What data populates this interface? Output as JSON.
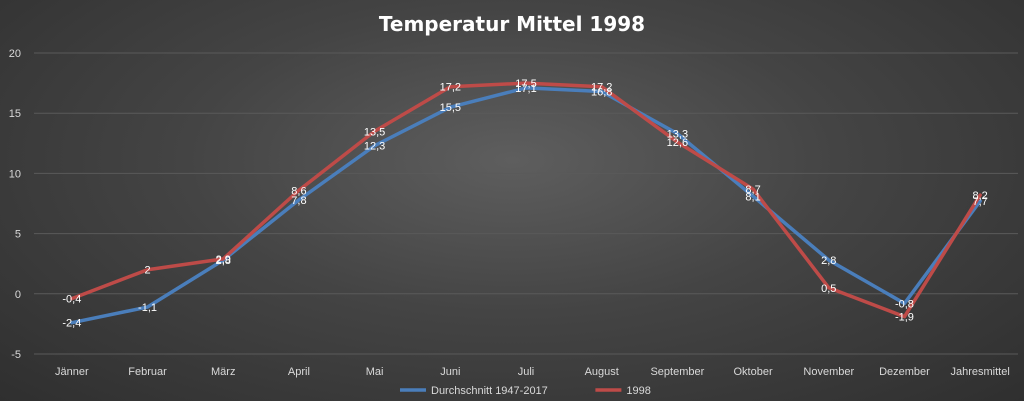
{
  "chart_data": {
    "type": "line",
    "title": "Temperatur Mittel 1998",
    "categories": [
      "Jänner",
      "Februar",
      "März",
      "April",
      "Mai",
      "Juni",
      "Juli",
      "August",
      "September",
      "Oktober",
      "November",
      "Dezember",
      "Jahresmittel"
    ],
    "ylim": [
      -5,
      20
    ],
    "yticks": [
      -5,
      0,
      5,
      10,
      15,
      20
    ],
    "grid": true,
    "legend_position": "bottom",
    "series": [
      {
        "name": "Durchschnitt 1947-2017",
        "color": "#4a7ebb",
        "values": [
          -2.4,
          -1.1,
          2.8,
          7.8,
          12.3,
          15.5,
          17.1,
          16.8,
          13.3,
          8.1,
          2.8,
          -0.8,
          7.7
        ],
        "labels": [
          "-2,4",
          "-1,1",
          "2,8",
          "7,8",
          "12,3",
          "15,5",
          "17,1",
          "16,8",
          "13,3",
          "8,1",
          "2,8",
          "-0,8",
          "7,7"
        ]
      },
      {
        "name": "1998",
        "color": "#be4b48",
        "values": [
          -0.4,
          2,
          2.9,
          8.6,
          13.5,
          17.2,
          17.5,
          17.2,
          12.6,
          8.7,
          0.5,
          -1.9,
          8.2
        ],
        "labels": [
          "-0,4",
          "2",
          "2,9",
          "8,6",
          "13,5",
          "17,2",
          "17,5",
          "17,2",
          "12,6",
          "8,7",
          "0,5",
          "-1,9",
          "8,2"
        ]
      }
    ]
  }
}
